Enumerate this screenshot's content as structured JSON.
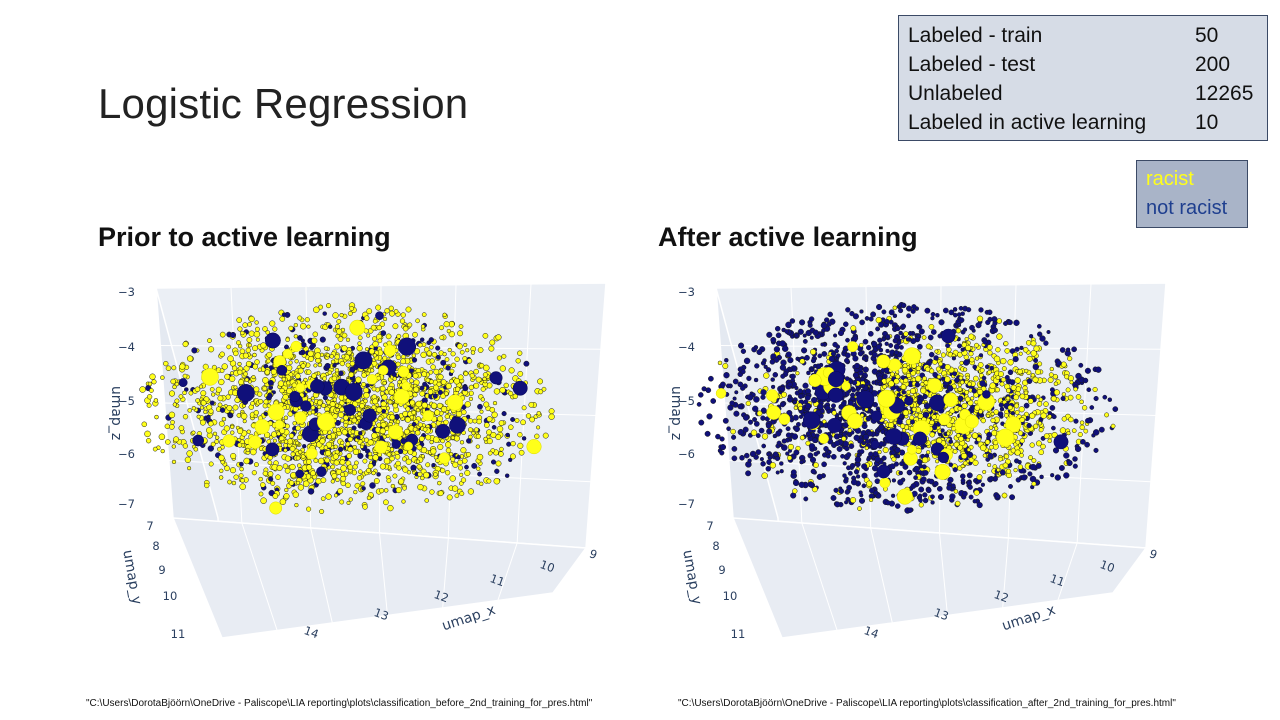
{
  "title": "Logistic Regression",
  "stats": [
    {
      "label": "Labeled - train",
      "value": "50"
    },
    {
      "label": "Labeled - test",
      "value": "200"
    },
    {
      "label": "Unlabeled",
      "value": "12265"
    },
    {
      "label": "Labeled in active learning",
      "value": "10"
    }
  ],
  "legend": {
    "racist_label": "racist",
    "not_racist_label": "not racist",
    "racist_color": "#ffff1a",
    "not_racist_color": "#1f3f8f"
  },
  "footnotes": {
    "before": "\"C:\\Users\\DorotaBjöörn\\OneDrive - Paliscope\\LIA reporting\\plots\\classification_before_2nd_training_for_pres.html\"",
    "after": "\"C:\\Users\\DorotaBjöörn\\OneDrive - Paliscope\\LIA reporting\\plots\\classification_after_2nd_training_for_pres.html\""
  },
  "chart_data": [
    {
      "type": "scatter",
      "title": "Prior to active learning",
      "axes": {
        "x": {
          "label": "umap_x",
          "ticks": [
            "14",
            "13",
            "12",
            "11",
            "10",
            "9"
          ]
        },
        "y": {
          "label": "umap_y",
          "ticks": [
            "7",
            "8",
            "9",
            "10",
            "11"
          ]
        },
        "z": {
          "label": "umap_z",
          "ticks": [
            "−3",
            "−4",
            "−5",
            "−6",
            "−7"
          ]
        }
      },
      "series": [
        {
          "name": "racist",
          "color": "#ffff1a",
          "approx_share": 0.9
        },
        {
          "name": "not racist",
          "color": "#10107a",
          "approx_share": 0.1
        }
      ]
    },
    {
      "type": "scatter",
      "title": "After active learning",
      "axes": {
        "x": {
          "label": "umap_x",
          "ticks": [
            "14",
            "13",
            "12",
            "11",
            "10",
            "9"
          ]
        },
        "y": {
          "label": "umap_y",
          "ticks": [
            "7",
            "8",
            "9",
            "10",
            "11"
          ]
        },
        "z": {
          "label": "umap_z",
          "ticks": [
            "−3",
            "−4",
            "−5",
            "−6",
            "−7"
          ]
        }
      },
      "series": [
        {
          "name": "racist",
          "color": "#ffff1a",
          "approx_share": 0.3
        },
        {
          "name": "not racist",
          "color": "#10107a",
          "approx_share": 0.7
        }
      ]
    }
  ]
}
